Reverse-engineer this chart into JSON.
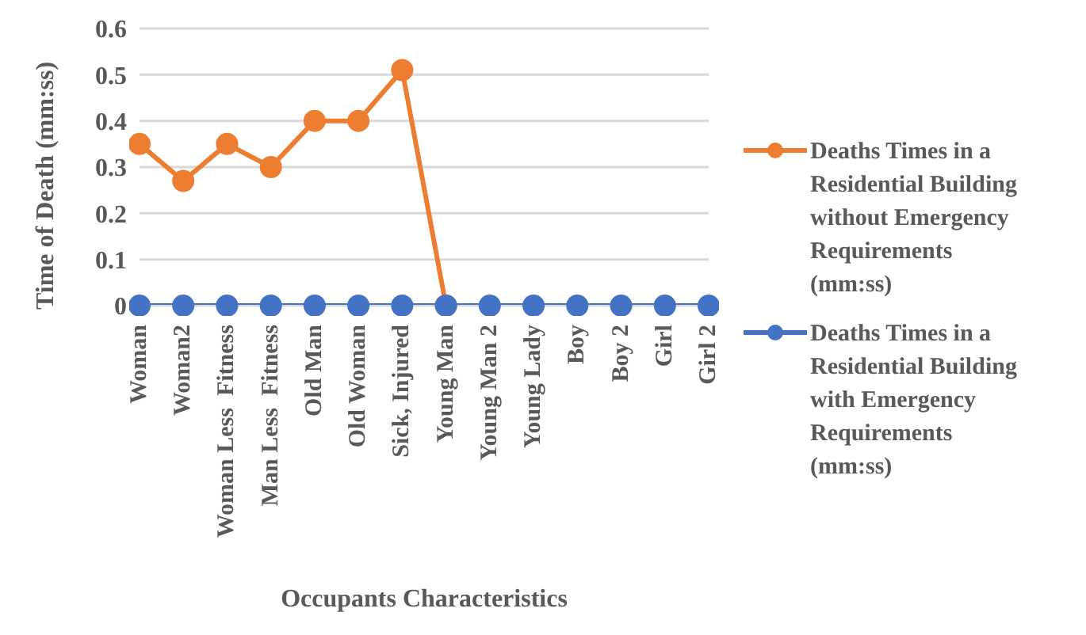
{
  "chart_data": {
    "type": "line",
    "xlabel": "Occupants Characteristics",
    "ylabel": "Time of  Death (mm:ss)",
    "categories": [
      "Woman",
      "Woman2",
      "Woman Less  Fitness",
      "Man Less  Fitness",
      "Old Man",
      "Old Woman",
      "Sick, Injured",
      "Young Man",
      "Young Man 2",
      "Young Lady",
      "Boy",
      "Boy 2",
      "Girl",
      "Girl 2"
    ],
    "series": [
      {
        "name": "Deaths Times in a Residential Building without Emergency Requirements (mm:ss)",
        "color": "#ed7d31",
        "values": [
          0.35,
          0.27,
          0.35,
          0.3,
          0.4,
          0.4,
          0.51,
          0,
          null,
          null,
          null,
          null,
          null,
          null
        ]
      },
      {
        "name": "Deaths Times in a Residential  Building with Emergency Requirements (mm:ss)",
        "color": "#4472c4",
        "values": [
          0,
          0,
          0,
          0,
          0,
          0,
          0,
          0,
          0,
          0,
          0,
          0,
          0,
          0
        ]
      }
    ],
    "ylim": [
      0,
      0.6
    ],
    "yticks": [
      0,
      0.1,
      0.2,
      0.3,
      0.4,
      0.5,
      0.6
    ],
    "grid": "y",
    "legend": "right",
    "marker": "circle"
  }
}
